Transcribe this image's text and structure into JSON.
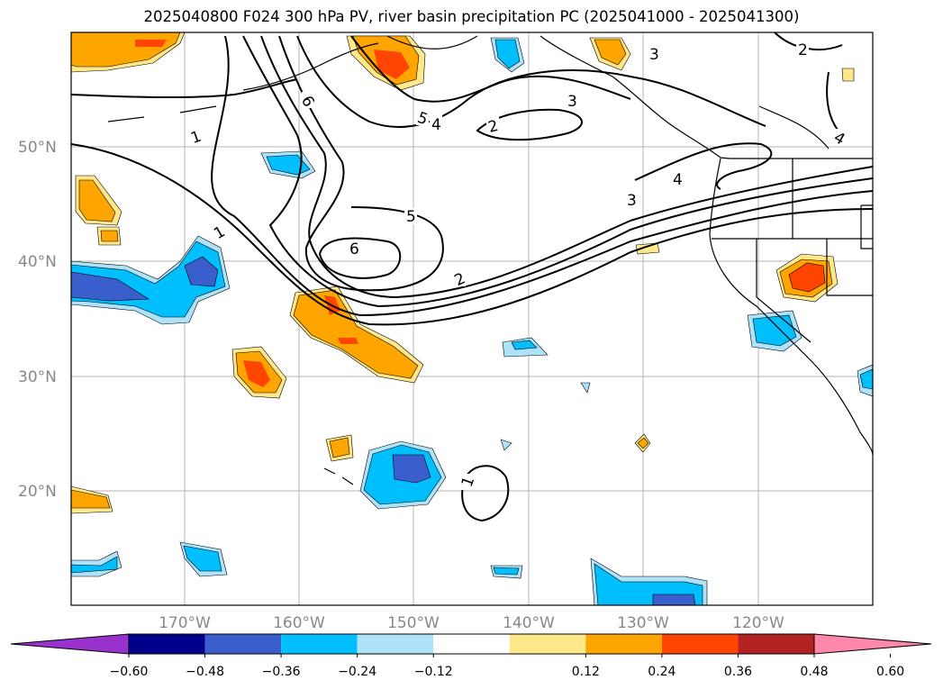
{
  "title": "2025040800 F024 300 hPa PV, river basin precipitation PC (2025041000 - 2025041300)",
  "map": {
    "lat_labels": [
      "50°N",
      "40°N",
      "30°N",
      "20°N"
    ],
    "lon_labels": [
      "170°W",
      "160°W",
      "150°W",
      "140°W",
      "130°W",
      "120°W"
    ],
    "contour_labels": [
      "1",
      "1",
      "1",
      "2",
      "2",
      "2",
      "3",
      "3",
      "3",
      "4",
      "4",
      "4",
      "5",
      "5",
      "6",
      "6"
    ]
  },
  "colorbar": {
    "colors": [
      "#9932CC",
      "#00008B",
      "#3A5FCD",
      "#00BFFF",
      "#ADE2F8",
      "#FFFFFF",
      "#FFE88A",
      "#FFA500",
      "#FF4500",
      "#B22222",
      "#FF88AA"
    ],
    "tick_labels": [
      "−0.60",
      "−0.48",
      "−0.36",
      "−0.24",
      "−0.12",
      "0.12",
      "0.24",
      "0.36",
      "0.48",
      "0.60"
    ]
  }
}
